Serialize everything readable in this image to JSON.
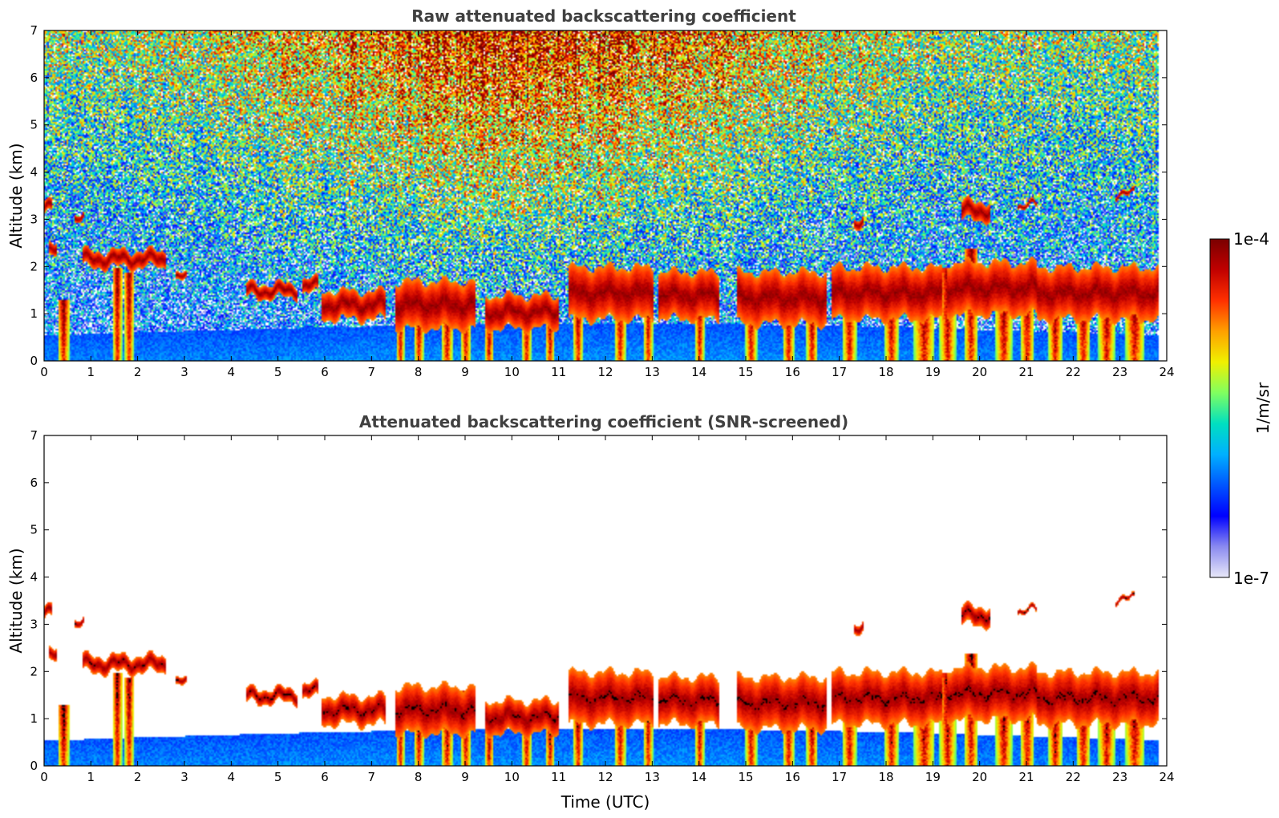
{
  "chart_data": [
    {
      "type": "heatmap",
      "title": "Raw attenuated backscattering coefficient",
      "xlabel": "",
      "ylabel": "Altitude (km)",
      "xlim": [
        0,
        24
      ],
      "ylim": [
        0,
        7
      ],
      "x_ticks": [
        "0",
        "1",
        "2",
        "3",
        "4",
        "5",
        "6",
        "7",
        "8",
        "9",
        "10",
        "11",
        "12",
        "13",
        "14",
        "15",
        "16",
        "17",
        "18",
        "19",
        "20",
        "21",
        "22",
        "23",
        "24"
      ],
      "y_ticks": [
        "0",
        "1",
        "2",
        "3",
        "4",
        "5",
        "6",
        "7"
      ],
      "data_end_time": 23.8,
      "screened": false
    },
    {
      "type": "heatmap",
      "title": "Attenuated backscattering coefficient (SNR-screened)",
      "xlabel": "Time (UTC)",
      "ylabel": "Altitude (km)",
      "xlim": [
        0,
        24
      ],
      "ylim": [
        0,
        7
      ],
      "x_ticks": [
        "0",
        "1",
        "2",
        "3",
        "4",
        "5",
        "6",
        "7",
        "8",
        "9",
        "10",
        "11",
        "12",
        "13",
        "14",
        "15",
        "16",
        "17",
        "18",
        "19",
        "20",
        "21",
        "22",
        "23",
        "24"
      ],
      "y_ticks": [
        "0",
        "1",
        "2",
        "3",
        "4",
        "5",
        "6",
        "7"
      ],
      "data_end_time": 23.8,
      "screened": true
    }
  ],
  "colorbar": {
    "label": "1/m/sr",
    "min_label": "1e-7",
    "max_label": "1e-4",
    "scale": "log",
    "colors": [
      "#e8e8f8",
      "#8a8af0",
      "#0000ff",
      "#0055ff",
      "#00b0ff",
      "#00e0c0",
      "#80ff60",
      "#f0f000",
      "#ffa000",
      "#ff3000",
      "#c00000",
      "#7a0000"
    ]
  },
  "clouds": [
    {
      "t0": 0.0,
      "t1": 0.15,
      "base": 3.15,
      "top": 3.4
    },
    {
      "t0": 0.1,
      "t1": 0.25,
      "base": 2.2,
      "top": 2.45
    },
    {
      "t0": 0.65,
      "t1": 0.85,
      "base": 2.95,
      "top": 3.1
    },
    {
      "t0": 0.8,
      "t1": 2.6,
      "base": 2.0,
      "top": 2.35
    },
    {
      "t0": 2.8,
      "t1": 3.05,
      "base": 1.7,
      "top": 1.85
    },
    {
      "t0": 4.3,
      "t1": 5.4,
      "base": 1.35,
      "top": 1.65
    },
    {
      "t0": 5.5,
      "t1": 5.85,
      "base": 1.45,
      "top": 1.75
    },
    {
      "t0": 5.9,
      "t1": 7.3,
      "base": 0.9,
      "top": 1.5
    },
    {
      "t0": 7.5,
      "t1": 9.2,
      "base": 0.7,
      "top": 1.7
    },
    {
      "t0": 9.4,
      "t1": 11.0,
      "base": 0.7,
      "top": 1.4
    },
    {
      "t0": 11.2,
      "t1": 13.0,
      "base": 0.9,
      "top": 2.0
    },
    {
      "t0": 13.1,
      "t1": 14.4,
      "base": 0.9,
      "top": 1.9
    },
    {
      "t0": 14.8,
      "t1": 16.7,
      "base": 0.8,
      "top": 1.9
    },
    {
      "t0": 16.8,
      "t1": 19.2,
      "base": 0.9,
      "top": 2.0
    },
    {
      "t0": 17.3,
      "t1": 17.5,
      "base": 2.85,
      "top": 3.05
    },
    {
      "t0": 19.6,
      "t1": 20.2,
      "base": 3.0,
      "top": 3.4
    },
    {
      "t0": 19.3,
      "t1": 21.2,
      "base": 1.0,
      "top": 2.1
    },
    {
      "t0": 21.2,
      "t1": 23.8,
      "base": 0.9,
      "top": 2.0
    },
    {
      "t0": 20.8,
      "t1": 21.2,
      "base": 3.25,
      "top": 3.35
    },
    {
      "t0": 22.9,
      "t1": 23.3,
      "base": 3.5,
      "top": 3.6
    }
  ],
  "precip": [
    {
      "t": 0.4,
      "w": 0.25,
      "top": 1.3
    },
    {
      "t": 1.55,
      "w": 0.2,
      "top": 2.0
    },
    {
      "t": 1.8,
      "w": 0.2,
      "top": 1.9
    },
    {
      "t": 7.6,
      "w": 0.18,
      "top": 1.4
    },
    {
      "t": 8.0,
      "w": 0.2,
      "top": 1.2
    },
    {
      "t": 8.6,
      "w": 0.25,
      "top": 1.5
    },
    {
      "t": 9.0,
      "w": 0.22,
      "top": 1.6
    },
    {
      "t": 9.5,
      "w": 0.2,
      "top": 1.1
    },
    {
      "t": 10.3,
      "w": 0.2,
      "top": 1.2
    },
    {
      "t": 10.8,
      "w": 0.2,
      "top": 1.3
    },
    {
      "t": 11.4,
      "w": 0.2,
      "top": 1.1
    },
    {
      "t": 12.3,
      "w": 0.25,
      "top": 1.7
    },
    {
      "t": 12.9,
      "w": 0.2,
      "top": 1.8
    },
    {
      "t": 14.0,
      "w": 0.2,
      "top": 1.5
    },
    {
      "t": 15.1,
      "w": 0.25,
      "top": 1.6
    },
    {
      "t": 15.9,
      "w": 0.25,
      "top": 1.7
    },
    {
      "t": 16.4,
      "w": 0.25,
      "top": 1.6
    },
    {
      "t": 17.2,
      "w": 0.3,
      "top": 1.8
    },
    {
      "t": 18.1,
      "w": 0.3,
      "top": 1.7
    },
    {
      "t": 18.8,
      "w": 0.45,
      "top": 1.9
    },
    {
      "t": 19.3,
      "w": 0.35,
      "top": 2.0
    },
    {
      "t": 19.8,
      "w": 0.3,
      "top": 2.4
    },
    {
      "t": 20.5,
      "w": 0.35,
      "top": 1.8
    },
    {
      "t": 21.0,
      "w": 0.3,
      "top": 1.8
    },
    {
      "t": 21.6,
      "w": 0.3,
      "top": 1.5
    },
    {
      "t": 22.2,
      "w": 0.3,
      "top": 1.6
    },
    {
      "t": 22.7,
      "w": 0.35,
      "top": 1.7
    },
    {
      "t": 23.3,
      "w": 0.4,
      "top": 1.6
    }
  ]
}
